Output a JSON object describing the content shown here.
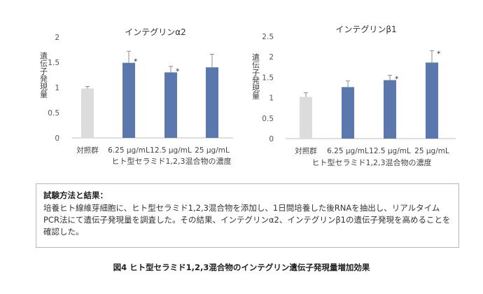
{
  "colors": {
    "control_bar": "#dcdcdc",
    "treatment_bar": "#5a78ad",
    "error_bar": "#8c8c8c",
    "axis": "#bfbfbf",
    "text": "#333333"
  },
  "chart_data": [
    {
      "type": "bar",
      "title": "インテグリンα2",
      "ylabel": "遺伝子発現量",
      "xlabel": "ヒト型セラミド1,2,3混合物の濃度",
      "categories": [
        "対照群",
        "6.25 μg/mL",
        "12.5 μg/mL",
        "25 μg/mL"
      ],
      "values": [
        0.98,
        1.49,
        1.3,
        1.4
      ],
      "errors": [
        0.04,
        0.23,
        0.12,
        0.26
      ],
      "significance": [
        "",
        "*",
        "*",
        ""
      ],
      "ylim": [
        0,
        2
      ],
      "yticks": [
        "0",
        "0.5",
        "1",
        "1.5",
        "2"
      ],
      "grid": false,
      "legend": "none"
    },
    {
      "type": "bar",
      "title": "インテグリンβ1",
      "ylabel": "遺伝子発現量",
      "xlabel": "ヒト型セラミド1,2,3混合物の濃度",
      "categories": [
        "対照群",
        "6.25 μg/mL",
        "12.5 μg/mL",
        "25 μg/mL"
      ],
      "values": [
        1.02,
        1.26,
        1.43,
        1.86
      ],
      "errors": [
        0.1,
        0.15,
        0.12,
        0.29
      ],
      "significance": [
        "",
        "",
        "*",
        "*"
      ],
      "ylim": [
        0,
        2.5
      ],
      "yticks": [
        "0",
        "0.5",
        "1",
        "1.5",
        "2",
        "2.5"
      ],
      "grid": false,
      "legend": "none"
    }
  ],
  "method": {
    "title": "試験方法と結果：",
    "body": "培養ヒト線維芽細胞に、ヒト型セラミド1,2,3混合物を添加し、1日間培養した後RNAを抽出し、リアルタイムPCR法にて遺伝子発現量を調査した。その結果、インテグリンα2、インテグリンβ1の遺伝子発現を高めることを確認した。"
  },
  "caption": "図4 ヒト型セラミド1,2,3混合物のインテグリン遺伝子発現量増加効果"
}
